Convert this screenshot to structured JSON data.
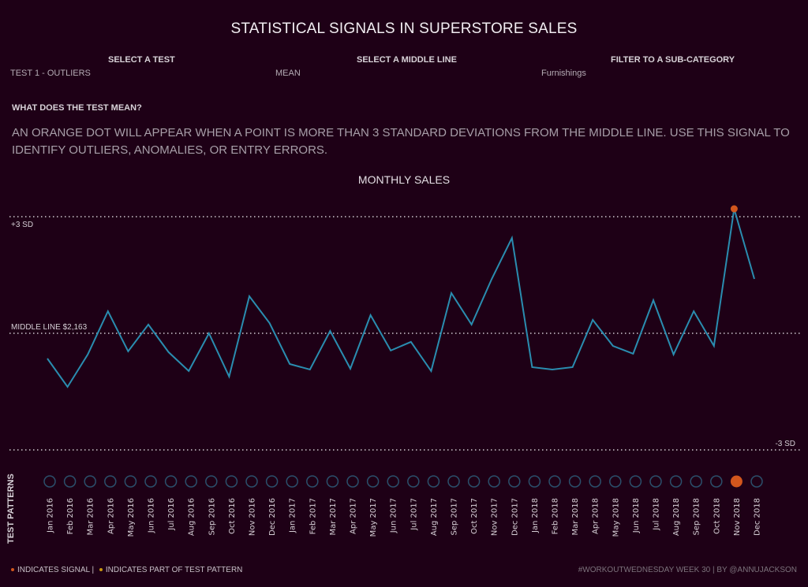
{
  "header": {
    "title": "STATISTICAL SIGNALS IN SUPERSTORE SALES"
  },
  "controls": [
    {
      "label": "SELECT A TEST",
      "value": "TEST 1 - OUTLIERS"
    },
    {
      "label": "SELECT A MIDDLE LINE",
      "value": "MEAN"
    },
    {
      "label": "FILTER TO A SUB-CATEGORY",
      "value": "Furnishings"
    }
  ],
  "explanation": {
    "heading": "WHAT DOES THE TEST MEAN?",
    "body": "AN ORANGE DOT WILL APPEAR WHEN A POINT IS MORE THAN 3 STANDARD DEVIATIONS FROM THE MIDDLE LINE.  USE THIS SIGNAL TO IDENTIFY OUTLIERS, ANOMALIES, OR ENTRY ERRORS."
  },
  "colors": {
    "background": "#1e0016",
    "line": "#2a8db0",
    "signal": "#d2561d",
    "pattern": "#c8960f",
    "circle_outline": "#2b4f6b",
    "reference": "#cfc8cf"
  },
  "chart_data": {
    "type": "line",
    "title": "MONTHLY SALES",
    "xlabel": "",
    "ylabel": "",
    "x": [
      "Jan 2016",
      "Feb 2016",
      "Mar 2016",
      "Apr 2016",
      "May 2016",
      "Jun 2016",
      "Jul 2016",
      "Aug 2016",
      "Sep 2016",
      "Oct 2016",
      "Nov 2016",
      "Dec 2016",
      "Jan 2017",
      "Feb 2017",
      "Mar 2017",
      "Apr 2017",
      "May 2017",
      "Jun 2017",
      "Jul 2017",
      "Aug 2017",
      "Sep 2017",
      "Oct 2017",
      "Nov 2017",
      "Dec 2017",
      "Jan 2018",
      "Feb 2018",
      "Mar 2018",
      "Apr 2018",
      "May 2018",
      "Jun 2018",
      "Jul 2018",
      "Aug 2018",
      "Sep 2018",
      "Oct 2018",
      "Nov 2018",
      "Dec 2018"
    ],
    "series": [
      {
        "name": "Sales",
        "values": [
          1580,
          923,
          1672,
          2674,
          1745,
          2365,
          1727,
          1289,
          2163,
          1161,
          3020,
          2400,
          1451,
          1324,
          2218,
          1343,
          2583,
          1763,
          1964,
          1289,
          3093,
          2365,
          3421,
          4370,
          1378,
          1324,
          1378,
          2473,
          1872,
          1690,
          2929,
          1672,
          2674,
          1872,
          5045,
          3421
        ]
      }
    ],
    "reference_lines": [
      {
        "label": "+3 SD",
        "value": 4863
      },
      {
        "label": "MIDDLE LINE $2,163",
        "value": 2163
      },
      {
        "label": "-3 SD",
        "value": -537
      }
    ],
    "signals": [
      "Nov 2018"
    ],
    "ylim": [
      -850,
      5100
    ],
    "grid": false,
    "legend": "none"
  },
  "patterns": {
    "label": "TEST PATTERNS"
  },
  "legend": {
    "signal": "INDICATES SIGNAL |",
    "pattern": "INDICATES PART OF TEST PATTERN"
  },
  "footer": {
    "credit": "#WORKOUTWEDNESDAY WEEK 30 | BY @ANNUJACKSON"
  }
}
